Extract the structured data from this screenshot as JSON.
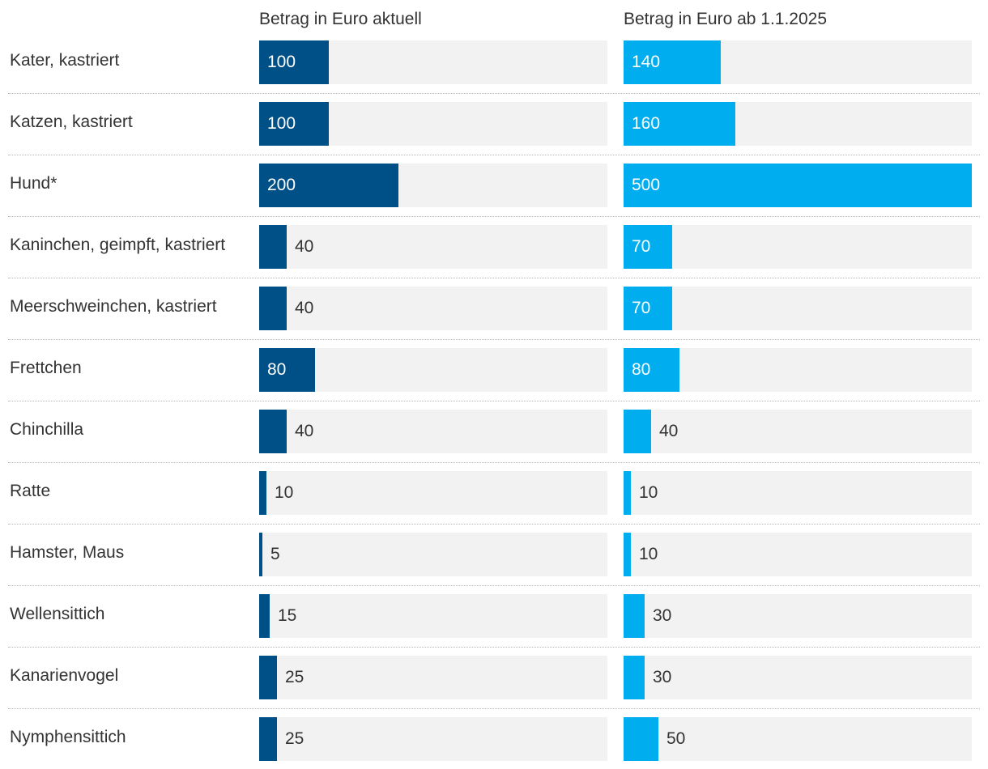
{
  "chart_data": {
    "type": "bar",
    "orientation": "horizontal",
    "categories": [
      "Kater, kastriert",
      "Katzen, kastriert",
      "Hund*",
      "Kaninchen, geimpft, kastriert",
      "Meerschweinchen, kastriert",
      "Frettchen",
      "Chinchilla",
      "Ratte",
      "Hamster, Maus",
      "Wellensittich",
      "Kanarienvogel",
      "Nymphensittich"
    ],
    "series": [
      {
        "name": "Betrag in Euro aktuell",
        "color": "#005088",
        "values": [
          100,
          100,
          200,
          40,
          40,
          80,
          40,
          10,
          5,
          15,
          25,
          25
        ]
      },
      {
        "name": "Betrag in Euro ab 1.1.2025",
        "color": "#00aeef",
        "values": [
          140,
          160,
          500,
          70,
          70,
          80,
          40,
          10,
          10,
          30,
          30,
          50
        ]
      }
    ],
    "xlim": [
      0,
      500
    ],
    "track_color": "#f2f2f2"
  }
}
